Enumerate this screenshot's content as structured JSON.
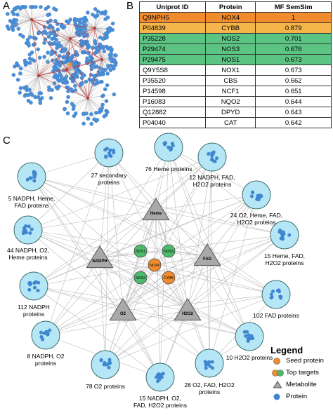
{
  "panels": {
    "a": {
      "label": "A"
    },
    "b": {
      "label": "B",
      "table": {
        "header": [
          "Uniprot ID",
          "Protein",
          "MF SemSim"
        ],
        "rows": [
          [
            "Q9NPH5",
            "NOX4",
            "1"
          ],
          [
            "P04839",
            "CYBB",
            "0.879"
          ],
          [
            "P35228",
            "NOS2",
            "0.701"
          ],
          [
            "P29474",
            "NOS3",
            "0.676"
          ],
          [
            "P29475",
            "NOS1",
            "0.673"
          ],
          [
            "Q9Y5S8",
            "NOX1",
            "0.673"
          ],
          [
            "P35520",
            "CBS",
            "0.662"
          ],
          [
            "P14598",
            "NCF1",
            "0.651"
          ],
          [
            "P16083",
            "NQO2",
            "0.644"
          ],
          [
            "Q12882",
            "DPYD",
            "0.643"
          ],
          [
            "P04040",
            "CAT",
            "0.642"
          ]
        ]
      }
    },
    "c": {
      "label": "C",
      "protein_groups": [
        "27 secondary proteins",
        "76 Heme proteins",
        "12 NADPH, FAD, H2O2 proteins",
        "5 NADPH, Heme, FAD proteins",
        "24 O2, Heme, FAD, H2O2 proteins",
        "44 NADPH, O2, Heme proteins",
        "15 Heme, FAD, H2O2 proteins",
        "112 NADPH proteins",
        "102 FAD proteins",
        "8 NADPH, O2 proteins",
        "10 H2O2 proteins",
        "78 O2 proteins",
        "15 NADPH, O2, FAD, H2O2 proteins",
        "28 O2, FAD, H2O2 proteins"
      ],
      "metabolites": [
        "Heme",
        "NADPH",
        "FAD",
        "O2",
        "H2O2"
      ],
      "targets": [
        {
          "name": "NOS1",
          "color": "#4cbb6c"
        },
        {
          "name": "NOS3",
          "color": "#4cbb6c"
        },
        {
          "name": "NOX4",
          "color": "#f08c2e"
        },
        {
          "name": "NOS2",
          "color": "#4cbb6c"
        },
        {
          "name": "CYBB",
          "color": "#f08c2e"
        }
      ],
      "legend": {
        "title": "Legend",
        "items": [
          "Seed protein",
          "Top targets",
          "Metabolite",
          "Protein"
        ]
      }
    }
  }
}
